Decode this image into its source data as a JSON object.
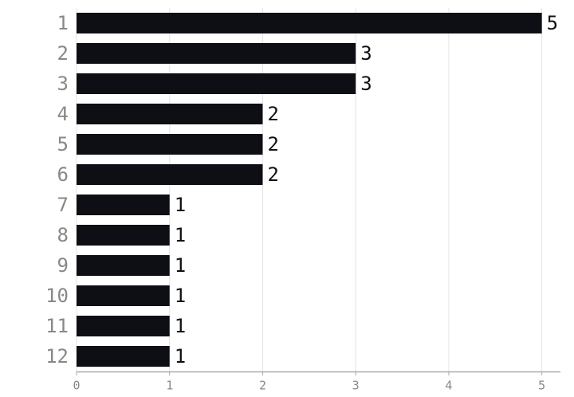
{
  "chart_data": {
    "type": "barh",
    "categories": [
      "1",
      "2",
      "3",
      "4",
      "5",
      "6",
      "7",
      "8",
      "9",
      "10",
      "11",
      "12"
    ],
    "values": [
      5,
      3,
      3,
      2,
      2,
      2,
      1,
      1,
      1,
      1,
      1,
      1
    ],
    "color": "#0d0f14",
    "xlim": [
      0,
      5.2
    ],
    "xticks": [
      0,
      1,
      2,
      3,
      4,
      5
    ],
    "grid": true
  }
}
